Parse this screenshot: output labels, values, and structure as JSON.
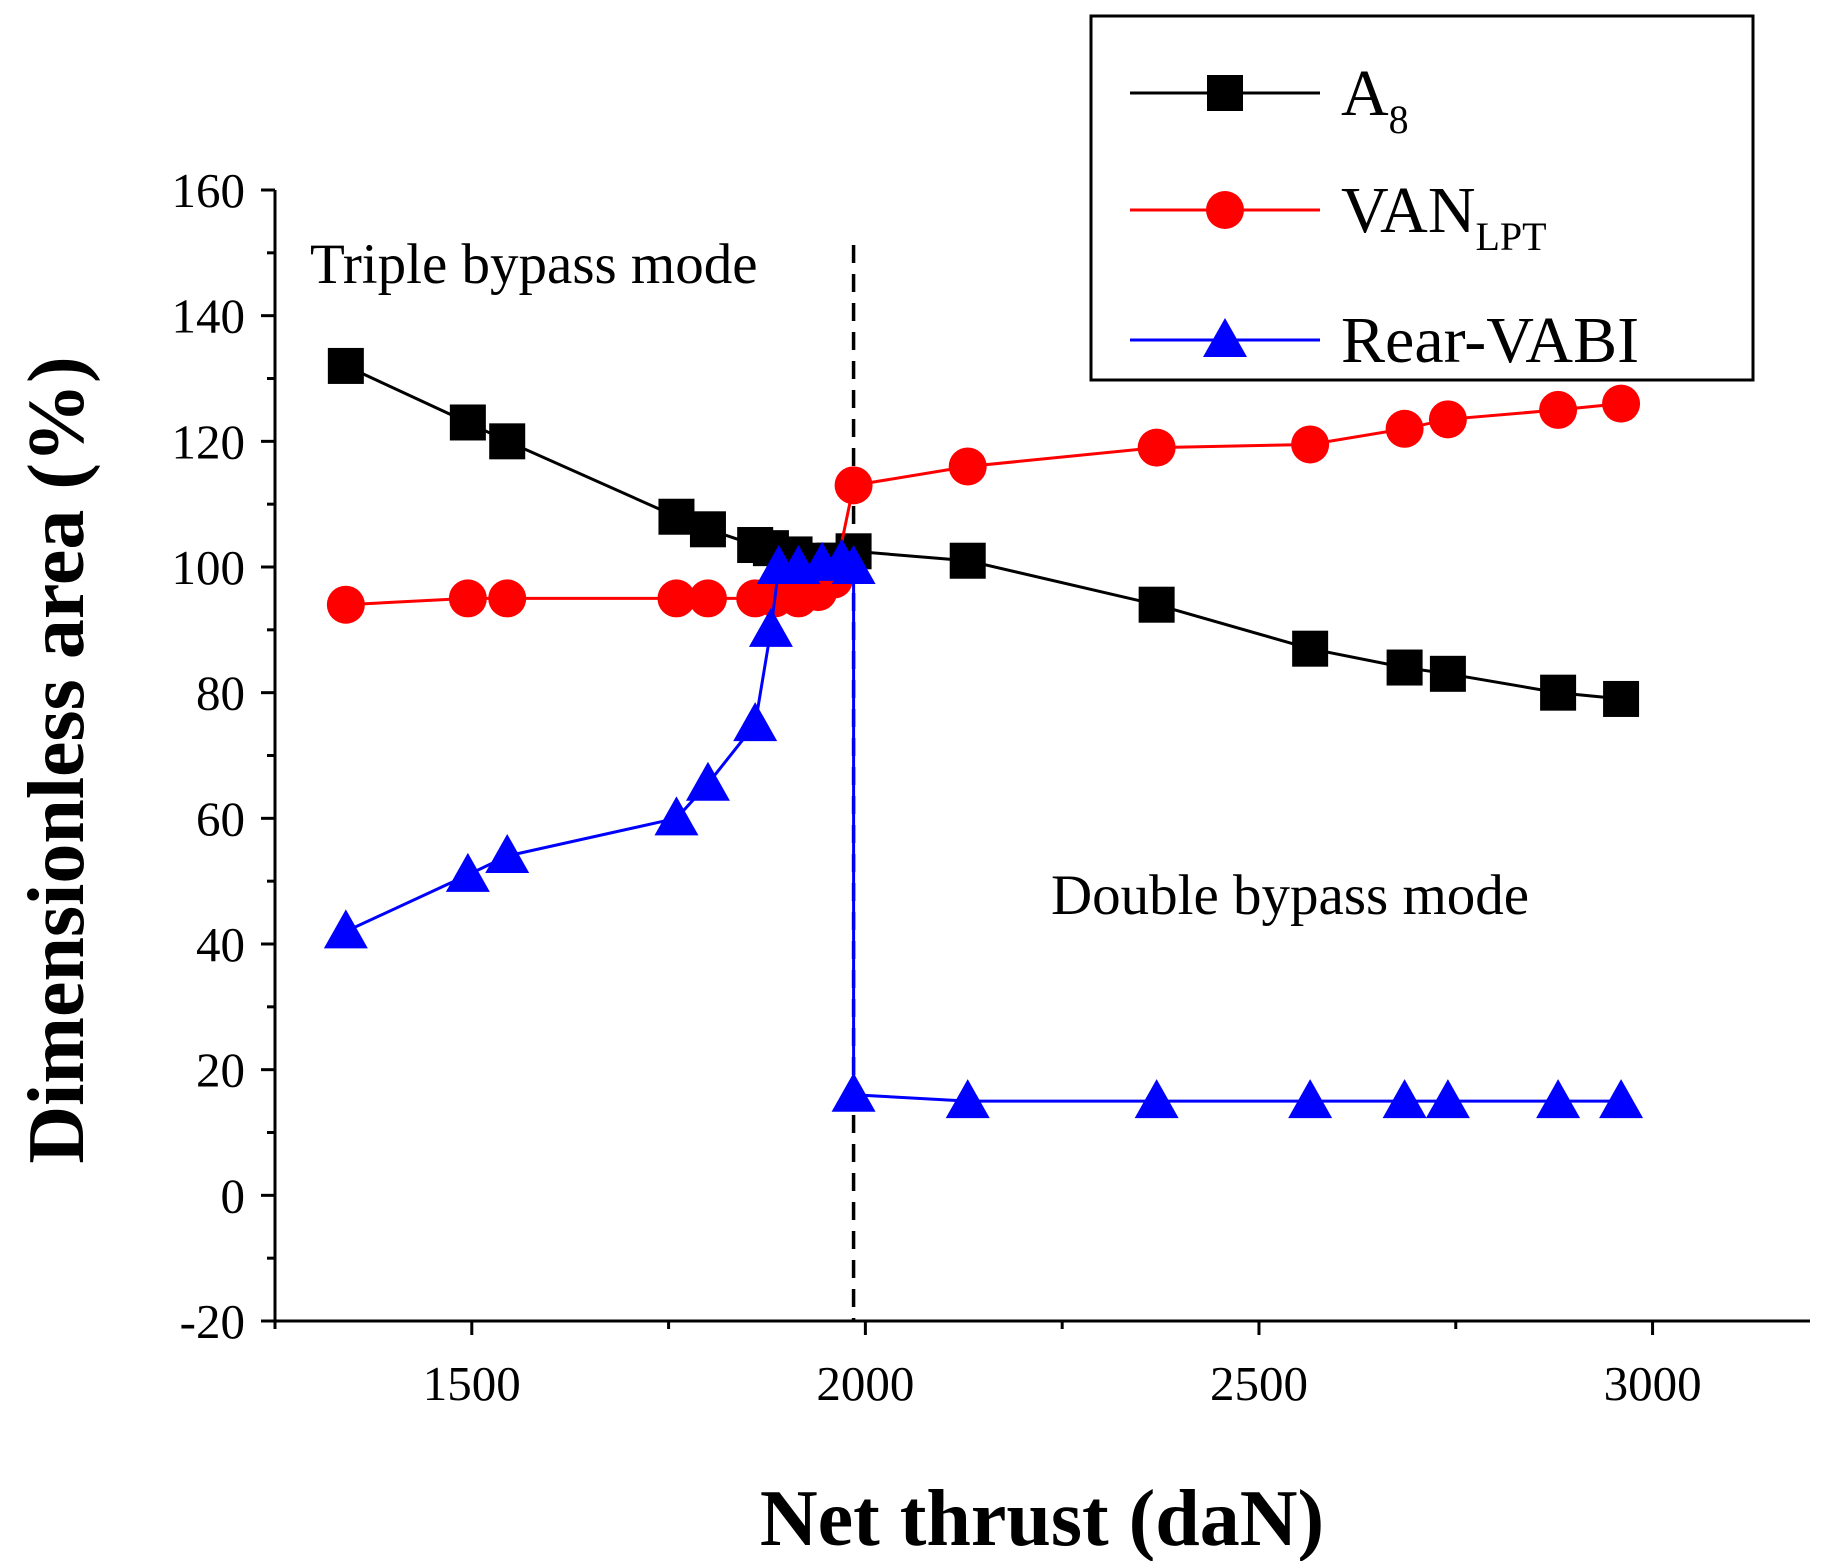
{
  "chart_data": {
    "type": "line",
    "xlabel": "Net thrust (daN)",
    "ylabel": "Dimensionless area (%)",
    "xlim": [
      1250,
      3200
    ],
    "ylim": [
      -20,
      160
    ],
    "xticks": [
      1500,
      2000,
      2500,
      3000
    ],
    "yticks": [
      -20,
      0,
      20,
      40,
      60,
      80,
      100,
      120,
      140,
      160
    ],
    "grid": false,
    "legend_position": "top-right",
    "annotations": [
      {
        "text": "Triple bypass mode"
      },
      {
        "text": "Double bypass mode"
      }
    ],
    "mode_switch_x": 1985,
    "series": [
      {
        "name": "A8",
        "label_main": "A",
        "label_sub": "8",
        "color": "#000000",
        "marker": "square",
        "x": [
          1340,
          1495,
          1545,
          1760,
          1800,
          1860,
          1880,
          1910,
          1940,
          1960,
          1985,
          2130,
          2370,
          2565,
          2685,
          2740,
          2880,
          2960
        ],
        "y": [
          132,
          123,
          120,
          108,
          106,
          103.5,
          103,
          102,
          101,
          101,
          102.5,
          101,
          94,
          87,
          84,
          83,
          80,
          79
        ]
      },
      {
        "name": "VANLPT",
        "label_main": "VAN",
        "label_sub": "LPT",
        "color": "#ff0000",
        "marker": "circle",
        "x": [
          1340,
          1495,
          1545,
          1760,
          1800,
          1860,
          1885,
          1915,
          1940,
          1960,
          1985,
          2130,
          2370,
          2565,
          2685,
          2740,
          2880,
          2960
        ],
        "y": [
          94,
          95,
          95,
          95,
          95,
          95,
          95,
          95,
          96,
          98,
          113,
          116,
          119,
          119.5,
          122,
          123.5,
          125,
          126
        ]
      },
      {
        "name": "Rear-VABI",
        "label_main": "Rear-VABI",
        "label_sub": "",
        "color": "#0000ff",
        "marker": "triangle",
        "x": [
          1340,
          1495,
          1545,
          1760,
          1800,
          1860,
          1880,
          1890,
          1915,
          1945,
          1970,
          1985,
          1985,
          2130,
          2370,
          2565,
          2685,
          2740,
          2880,
          2960
        ],
        "y": [
          42,
          51,
          54,
          60,
          65.5,
          75,
          90,
          100,
          100,
          100.5,
          101,
          100,
          16,
          15,
          15,
          15,
          15,
          15,
          15,
          15
        ]
      }
    ]
  }
}
